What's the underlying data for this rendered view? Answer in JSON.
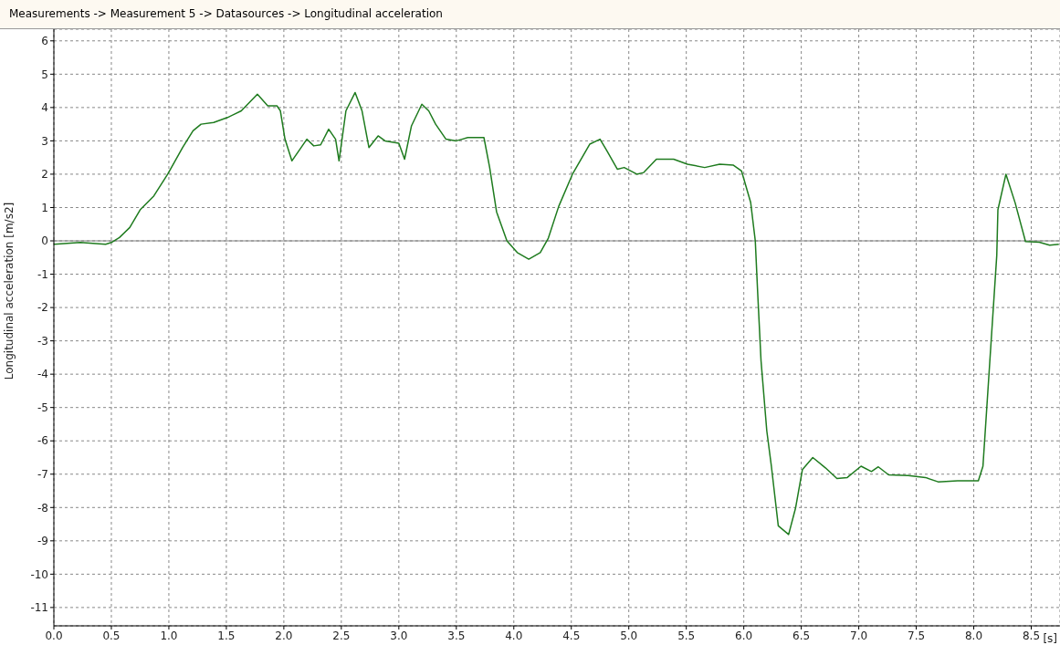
{
  "chart_data": {
    "type": "line",
    "title": "Measurements -> Measurement 5 -> Datasources -> Longitudinal acceleration",
    "xlabel": "[s]",
    "ylabel": "Longitudinal acceleration [m/s2]",
    "xlim": [
      0,
      8.75
    ],
    "xticks": [
      {
        "value": 0,
        "label": "0.0"
      },
      0.5,
      {
        "value": 1,
        "label": "1.0"
      },
      1.5,
      {
        "value": 2,
        "label": "2.0"
      },
      2.5,
      {
        "value": 3,
        "label": "3.0"
      },
      3.5,
      {
        "value": 4,
        "label": "4.0"
      },
      4.5,
      {
        "value": 5,
        "label": "5.0"
      },
      5.5,
      {
        "value": 6,
        "label": "6.0"
      },
      6.5,
      {
        "value": 7,
        "label": "7.0"
      },
      7.5,
      {
        "value": 8,
        "label": "8.0"
      },
      8.5
    ],
    "ylim": [
      -11.55,
      6.35
    ],
    "yticks": [
      -11,
      -10,
      -9,
      -8,
      -7,
      -6,
      -5,
      -4,
      -3,
      -2,
      -1,
      0,
      1,
      2,
      3,
      4,
      5,
      6
    ],
    "grid": true,
    "marker": "none",
    "line_style": "solid",
    "ref_lines": [
      {
        "axis": "y",
        "value": 0,
        "color": "#808080",
        "line_style": "solid"
      }
    ],
    "series": [
      {
        "color": "#1e7b1e",
        "x": [
          0,
          0.23,
          0.45,
          0.5,
          0.57,
          0.66,
          0.75,
          0.87,
          0.99,
          1.12,
          1.21,
          1.28,
          1.39,
          1.51,
          1.63,
          1.77,
          1.86,
          1.94,
          1.97,
          2.01,
          2.07,
          2.2,
          2.26,
          2.32,
          2.39,
          2.45,
          2.48,
          2.54,
          2.62,
          2.68,
          2.74,
          2.82,
          2.88,
          3.0,
          3.05,
          3.11,
          3.2,
          3.26,
          3.32,
          3.41,
          3.5,
          3.6,
          3.74,
          3.79,
          3.85,
          3.94,
          4.03,
          4.13,
          4.23,
          4.3,
          4.39,
          4.51,
          4.66,
          4.75,
          4.81,
          4.9,
          4.96,
          5.07,
          5.13,
          5.24,
          5.39,
          5.51,
          5.66,
          5.79,
          5.91,
          5.98,
          6.06,
          6.1,
          6.12,
          6.15,
          6.2,
          6.24,
          6.3,
          6.39,
          6.45,
          6.51,
          6.6,
          6.71,
          6.81,
          6.9,
          7.02,
          7.11,
          7.17,
          7.26,
          7.43,
          7.58,
          7.69,
          7.86,
          8.04,
          8.08,
          8.14,
          8.2,
          8.21,
          8.28,
          8.36,
          8.45,
          8.57,
          8.66,
          8.74
        ],
        "values": [
          -0.1,
          -0.05,
          -0.1,
          -0.05,
          0.1,
          0.4,
          0.93,
          1.35,
          2.0,
          2.8,
          3.3,
          3.5,
          3.55,
          3.7,
          3.9,
          4.4,
          4.05,
          4.05,
          3.9,
          3.05,
          2.4,
          3.05,
          2.85,
          2.88,
          3.35,
          3.05,
          2.4,
          3.9,
          4.45,
          3.9,
          2.8,
          3.15,
          3.0,
          2.93,
          2.45,
          3.45,
          4.1,
          3.9,
          3.5,
          3.05,
          3.0,
          3.1,
          3.1,
          2.2,
          0.87,
          0.0,
          -0.35,
          -0.55,
          -0.35,
          0.08,
          1.03,
          2.0,
          2.9,
          3.05,
          2.7,
          2.15,
          2.2,
          2.0,
          2.05,
          2.45,
          2.45,
          2.3,
          2.2,
          2.3,
          2.27,
          2.1,
          1.15,
          0,
          -1.5,
          -3.6,
          -5.7,
          -6.76,
          -8.55,
          -8.81,
          -8.02,
          -6.86,
          -6.5,
          -6.81,
          -7.13,
          -7.1,
          -6.76,
          -6.92,
          -6.78,
          -7.02,
          -7.04,
          -7.1,
          -7.23,
          -7.2,
          -7.2,
          -6.76,
          -3.6,
          -0.44,
          0.93,
          2.0,
          1.14,
          -0.02,
          -0.04,
          -0.13,
          -0.1
        ]
      }
    ]
  }
}
